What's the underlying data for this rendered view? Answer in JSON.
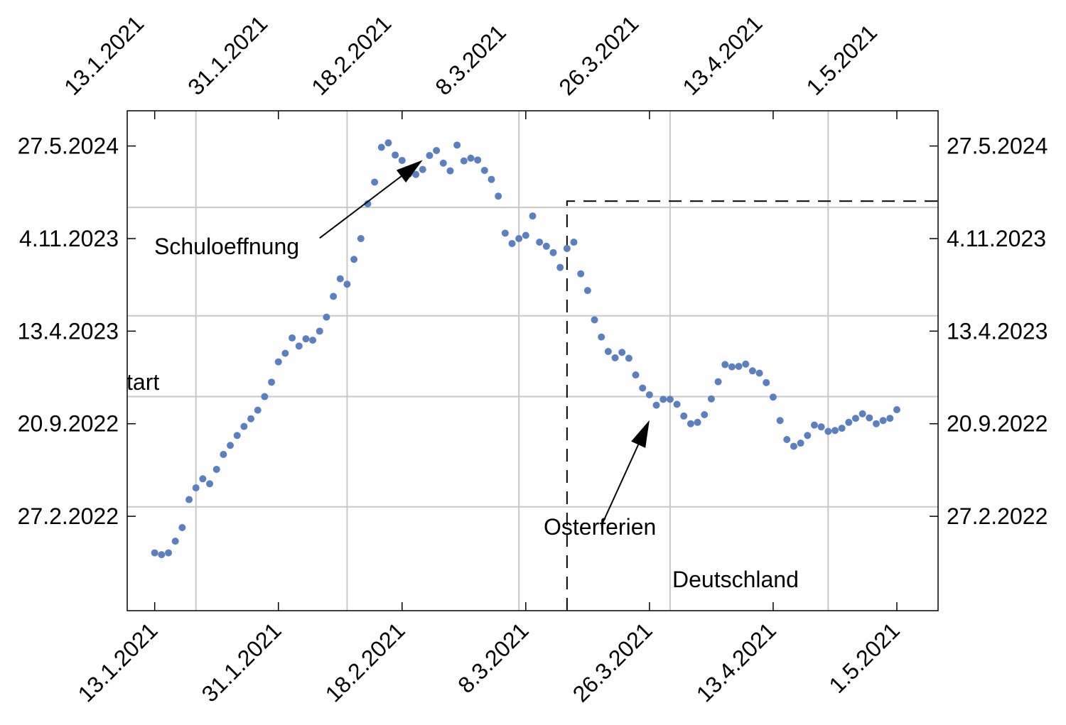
{
  "chart_data": {
    "type": "scatter",
    "title": "",
    "xlabel": "",
    "ylabel": "",
    "marker_color": "#5b7fbf",
    "grid": true,
    "x_range": [
      "2021-01-09",
      "2021-05-07"
    ],
    "y_range": [
      "2021-08-02",
      "2024-08-13"
    ],
    "x_tick_labels": [
      "13.1.2021",
      "31.1.2021",
      "18.2.2021",
      "8.3.2021",
      "26.3.2021",
      "13.4.2021",
      "1.5.2021"
    ],
    "x_tick_dates": [
      "2021-01-13",
      "2021-01-31",
      "2021-02-18",
      "2021-03-08",
      "2021-03-26",
      "2021-04-13",
      "2021-05-01"
    ],
    "y_tick_labels": [
      "27.2.2022",
      "20.9.2022",
      "13.4.2023",
      "4.11.2023",
      "27.5.2024"
    ],
    "y_tick_dates": [
      "2022-02-27",
      "2022-09-20",
      "2023-04-13",
      "2023-11-04",
      "2024-05-27"
    ],
    "x_gridlines": [
      "2021-01-19",
      "2021-02-10",
      "2021-03-07",
      "2021-03-29",
      "2021-04-21"
    ],
    "y_gridlines": [
      "2022-03-20",
      "2022-11-19",
      "2023-05-17",
      "2024-01-12"
    ],
    "dashed_guides": {
      "x": "2021-03-14",
      "y": "2024-01-26"
    },
    "series": [
      {
        "points": [
          [
            "2021-01-13",
            "2021-12-08"
          ],
          [
            "2021-01-14",
            "2021-12-04"
          ],
          [
            "2021-01-15",
            "2021-12-08"
          ],
          [
            "2021-01-16",
            "2022-01-03"
          ],
          [
            "2021-01-17",
            "2022-02-02"
          ],
          [
            "2021-01-18",
            "2022-04-05"
          ],
          [
            "2021-01-19",
            "2022-05-01"
          ],
          [
            "2021-01-20",
            "2022-05-21"
          ],
          [
            "2021-01-21",
            "2022-05-10"
          ],
          [
            "2021-01-22",
            "2022-06-11"
          ],
          [
            "2021-01-23",
            "2022-07-14"
          ],
          [
            "2021-01-24",
            "2022-08-03"
          ],
          [
            "2021-01-25",
            "2022-08-25"
          ],
          [
            "2021-01-26",
            "2022-09-14"
          ],
          [
            "2021-01-27",
            "2022-10-01"
          ],
          [
            "2021-01-28",
            "2022-10-20"
          ],
          [
            "2021-01-29",
            "2022-11-19"
          ],
          [
            "2021-01-30",
            "2022-12-21"
          ],
          [
            "2021-01-31",
            "2023-02-04"
          ],
          [
            "2021-02-01",
            "2023-02-23"
          ],
          [
            "2021-02-02",
            "2023-03-29"
          ],
          [
            "2021-02-03",
            "2023-03-11"
          ],
          [
            "2021-02-04",
            "2023-03-27"
          ],
          [
            "2021-02-05",
            "2023-03-24"
          ],
          [
            "2021-02-06",
            "2023-04-13"
          ],
          [
            "2021-02-07",
            "2023-05-14"
          ],
          [
            "2021-02-08",
            "2023-06-29"
          ],
          [
            "2021-02-09",
            "2023-08-07"
          ],
          [
            "2021-02-10",
            "2023-07-26"
          ],
          [
            "2021-02-11",
            "2023-09-19"
          ],
          [
            "2021-02-12",
            "2023-11-04"
          ],
          [
            "2021-02-13",
            "2024-01-20"
          ],
          [
            "2021-02-14",
            "2024-03-08"
          ],
          [
            "2021-02-15",
            "2024-05-24"
          ],
          [
            "2021-02-16",
            "2024-06-03"
          ],
          [
            "2021-02-17",
            "2024-05-07"
          ],
          [
            "2021-02-18",
            "2024-04-25"
          ],
          [
            "2021-02-19",
            "2024-03-26"
          ],
          [
            "2021-02-20",
            "2024-03-25"
          ],
          [
            "2021-02-21",
            "2024-04-05"
          ],
          [
            "2021-02-22",
            "2024-05-06"
          ],
          [
            "2021-02-23",
            "2024-05-17"
          ],
          [
            "2021-02-24",
            "2024-04-19"
          ],
          [
            "2021-02-25",
            "2024-04-02"
          ],
          [
            "2021-02-26",
            "2024-05-29"
          ],
          [
            "2021-02-27",
            "2024-04-24"
          ],
          [
            "2021-02-28",
            "2024-04-30"
          ],
          [
            "2021-03-01",
            "2024-04-26"
          ],
          [
            "2021-03-02",
            "2024-04-03"
          ],
          [
            "2021-03-03",
            "2024-03-14"
          ],
          [
            "2021-03-04",
            "2024-02-06"
          ],
          [
            "2021-03-05",
            "2023-11-16"
          ],
          [
            "2021-03-06",
            "2023-10-24"
          ],
          [
            "2021-03-07",
            "2023-11-04"
          ],
          [
            "2021-03-08",
            "2023-11-11"
          ],
          [
            "2021-03-09",
            "2023-12-24"
          ],
          [
            "2021-03-10",
            "2023-10-27"
          ],
          [
            "2021-03-11",
            "2023-10-18"
          ],
          [
            "2021-03-12",
            "2023-10-04"
          ],
          [
            "2021-03-13",
            "2023-09-01"
          ],
          [
            "2021-03-14",
            "2023-10-13"
          ],
          [
            "2021-03-15",
            "2023-10-27"
          ],
          [
            "2021-03-16",
            "2023-08-18"
          ],
          [
            "2021-03-17",
            "2023-07-12"
          ],
          [
            "2021-03-18",
            "2023-05-08"
          ],
          [
            "2021-03-19",
            "2023-03-31"
          ],
          [
            "2021-03-20",
            "2023-02-27"
          ],
          [
            "2021-03-21",
            "2023-02-13"
          ],
          [
            "2021-03-22",
            "2023-02-25"
          ],
          [
            "2021-03-23",
            "2023-02-12"
          ],
          [
            "2021-03-24",
            "2023-01-06"
          ],
          [
            "2021-03-25",
            "2022-12-08"
          ],
          [
            "2021-03-26",
            "2022-11-23"
          ],
          [
            "2021-03-27",
            "2022-10-31"
          ],
          [
            "2021-03-28",
            "2022-11-13"
          ],
          [
            "2021-03-29",
            "2022-11-13"
          ],
          [
            "2021-03-30",
            "2022-11-02"
          ],
          [
            "2021-03-31",
            "2022-10-07"
          ],
          [
            "2021-04-01",
            "2022-09-20"
          ],
          [
            "2021-04-02",
            "2022-09-23"
          ],
          [
            "2021-04-03",
            "2022-10-10"
          ],
          [
            "2021-04-04",
            "2022-11-14"
          ],
          [
            "2021-04-05",
            "2022-12-22"
          ],
          [
            "2021-04-06",
            "2023-01-29"
          ],
          [
            "2021-04-07",
            "2023-01-24"
          ],
          [
            "2021-04-08",
            "2023-01-25"
          ],
          [
            "2021-04-09",
            "2023-01-30"
          ],
          [
            "2021-04-10",
            "2023-01-15"
          ],
          [
            "2021-04-11",
            "2023-01-10"
          ],
          [
            "2021-04-12",
            "2022-12-20"
          ],
          [
            "2021-04-13",
            "2022-11-18"
          ],
          [
            "2021-04-14",
            "2022-09-27"
          ],
          [
            "2021-04-15",
            "2022-08-16"
          ],
          [
            "2021-04-16",
            "2022-08-01"
          ],
          [
            "2021-04-17",
            "2022-08-08"
          ],
          [
            "2021-04-18",
            "2022-08-25"
          ],
          [
            "2021-04-19",
            "2022-09-17"
          ],
          [
            "2021-04-20",
            "2022-09-13"
          ],
          [
            "2021-04-21",
            "2022-09-03"
          ],
          [
            "2021-04-22",
            "2022-09-05"
          ],
          [
            "2021-04-23",
            "2022-09-10"
          ],
          [
            "2021-04-24",
            "2022-09-23"
          ],
          [
            "2021-04-25",
            "2022-10-02"
          ],
          [
            "2021-04-26",
            "2022-10-12"
          ],
          [
            "2021-04-27",
            "2022-10-03"
          ],
          [
            "2021-04-28",
            "2022-09-20"
          ],
          [
            "2021-04-29",
            "2022-09-27"
          ],
          [
            "2021-04-30",
            "2022-10-02"
          ],
          [
            "2021-05-01",
            "2022-10-21"
          ]
        ]
      }
    ],
    "annotations": [
      {
        "text": "Schuloeffnung",
        "arrow_from": [
          "2021-02-06",
          "2023-11-05"
        ],
        "arrow_to": [
          "2021-02-21",
          "2024-04-26"
        ]
      },
      {
        "text": "Osterferien",
        "arrow_from": [
          "2021-03-19",
          "2022-02-06"
        ],
        "arrow_to": [
          "2021-03-26",
          "2022-09-28"
        ]
      },
      {
        "text": "Deutschland"
      },
      {
        "text": "start"
      }
    ]
  }
}
